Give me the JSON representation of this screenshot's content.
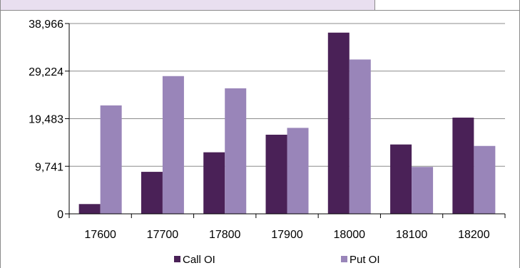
{
  "chart_data": {
    "type": "bar",
    "categories": [
      "17600",
      "17700",
      "17800",
      "17900",
      "18000",
      "18100",
      "18200"
    ],
    "series": [
      {
        "name": "Call OI",
        "values": [
          2000,
          8600,
          12600,
          16200,
          37100,
          14200,
          19700
        ],
        "color": "#4a2157"
      },
      {
        "name": "Put OI",
        "values": [
          22200,
          28200,
          25700,
          17600,
          31600,
          9600,
          13900
        ],
        "color": "#9985b9"
      }
    ],
    "y_ticks": [
      "0",
      "9,741",
      "19,483",
      "29,224",
      "38,966"
    ],
    "y_tick_values": [
      0,
      9741,
      19483,
      29224,
      38966
    ],
    "ylim": [
      0,
      38966
    ],
    "grid": true,
    "legend_position": "bottom"
  }
}
